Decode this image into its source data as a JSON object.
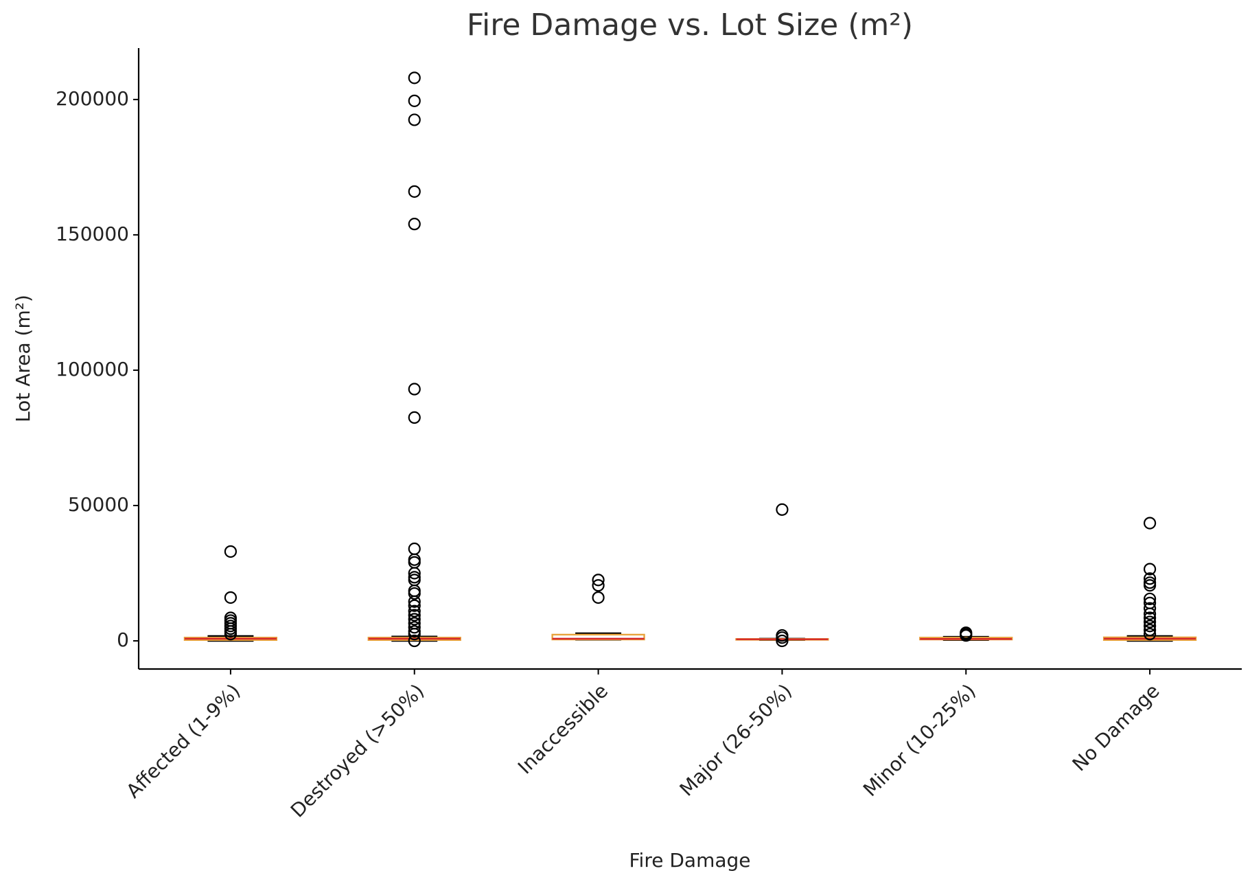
{
  "chart_data": {
    "type": "box",
    "title": "Fire Damage vs. Lot Size (m²)",
    "x_label": "Fire Damage",
    "y_label": "Lot Area (m²)",
    "categories": [
      "Affected (1-9%)",
      "Destroyed (>50%)",
      "Inaccessible",
      "Major (26-50%)",
      "Minor (10-25%)",
      "No Damage"
    ],
    "boxes": [
      {
        "whislo": 0,
        "q1": 300,
        "med": 800,
        "q3": 1200,
        "whishi": 1800,
        "fliers": [
          33000,
          16000,
          8500,
          7500,
          6500,
          5500,
          4500,
          3500,
          2500
        ]
      },
      {
        "whislo": 0,
        "q1": 300,
        "med": 800,
        "q3": 1200,
        "whishi": 1600,
        "fliers": [
          208000,
          199500,
          192500,
          166000,
          154000,
          93000,
          82500,
          34000,
          30000,
          29000,
          25000,
          23500,
          22500,
          18500,
          17500,
          14500,
          13000,
          11000,
          9500,
          8000,
          6500,
          5000,
          3500,
          2500,
          0
        ]
      },
      {
        "whislo": 400,
        "q1": 500,
        "med": 800,
        "q3": 2300,
        "whishi": 2800,
        "fliers": [
          22500,
          20500,
          16000
        ]
      },
      {
        "whislo": 300,
        "q1": 400,
        "med": 600,
        "q3": 700,
        "whishi": 800,
        "fliers": [
          48500,
          2000,
          1200,
          0
        ]
      },
      {
        "whislo": 300,
        "q1": 500,
        "med": 700,
        "q3": 1200,
        "whishi": 1500,
        "fliers": [
          3000,
          2500,
          2000
        ]
      },
      {
        "whislo": 0,
        "q1": 300,
        "med": 800,
        "q3": 1300,
        "whishi": 1800,
        "fliers": [
          43500,
          26500,
          23000,
          21500,
          20500,
          15500,
          14000,
          12000,
          10000,
          8500,
          7000,
          5500,
          4000,
          2500
        ]
      }
    ],
    "box_color": "#e8a33d",
    "median_color": "#d62728",
    "whisker_color": "#000000",
    "flier_color": "#000000",
    "ylim": [
      -10400,
      219000
    ],
    "yticks": [
      0,
      50000,
      100000,
      150000,
      200000
    ],
    "grid": false
  }
}
